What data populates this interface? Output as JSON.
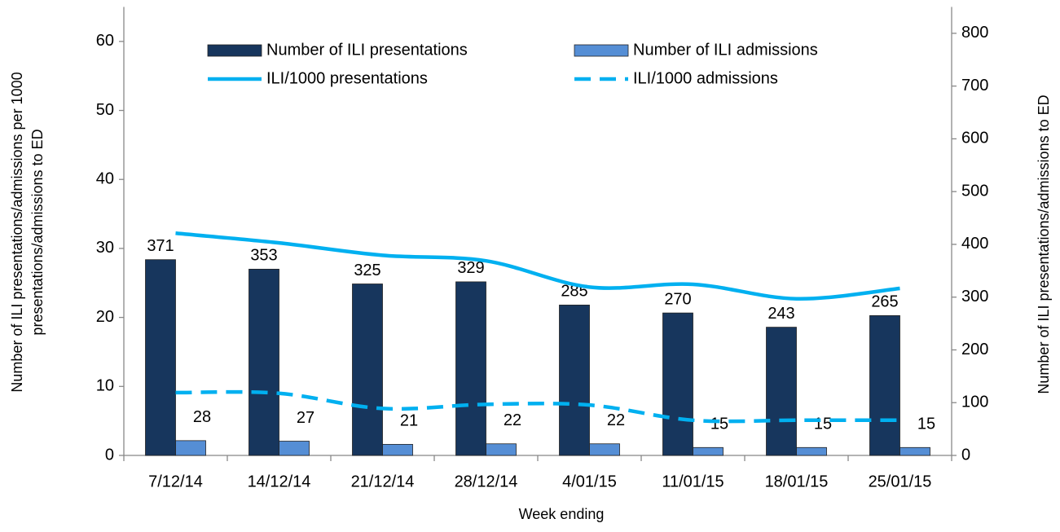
{
  "chart_data": {
    "type": "bar-line",
    "x_label": "Week ending",
    "y_label": [
      "Number of ILI presentations/admissions per 1000",
      "presentations/admissions to ED"
    ],
    "y2_label": "Number of ILI presentations/admissions  to ED",
    "categories": [
      "7/12/14",
      "14/12/14",
      "21/12/14",
      "28/12/14",
      "4/01/15",
      "11/01/15",
      "18/01/15",
      "25/01/15"
    ],
    "series": [
      {
        "name": "Number of ILI presentations",
        "type": "bar",
        "axis": "y2",
        "color": "#17365d",
        "values": [
          371,
          353,
          325,
          329,
          285,
          270,
          243,
          265
        ]
      },
      {
        "name": "Number of ILI admissions",
        "type": "bar",
        "axis": "y2",
        "color": "#558ed5",
        "values": [
          28,
          27,
          21,
          22,
          22,
          15,
          15,
          15
        ]
      },
      {
        "name": "ILI/1000 presentations",
        "type": "line",
        "dash": false,
        "color": "#00b0f0",
        "values": [
          32.2,
          30.8,
          29.0,
          28.2,
          24.4,
          24.8,
          22.7,
          24.2
        ]
      },
      {
        "name": "ILI/1000 admissions",
        "type": "line",
        "dash": true,
        "color": "#00b0f0",
        "values": [
          9.1,
          9.0,
          6.8,
          7.4,
          7.3,
          5.1,
          5.1,
          5.1
        ]
      }
    ],
    "ylim": [
      0,
      65
    ],
    "yticks": [
      0,
      10,
      20,
      30,
      40,
      50,
      60
    ],
    "y2lim": [
      0,
      850
    ],
    "y2ticks": [
      0,
      100,
      200,
      300,
      400,
      500,
      600,
      700,
      800
    ],
    "grid": false,
    "legend": "top"
  }
}
